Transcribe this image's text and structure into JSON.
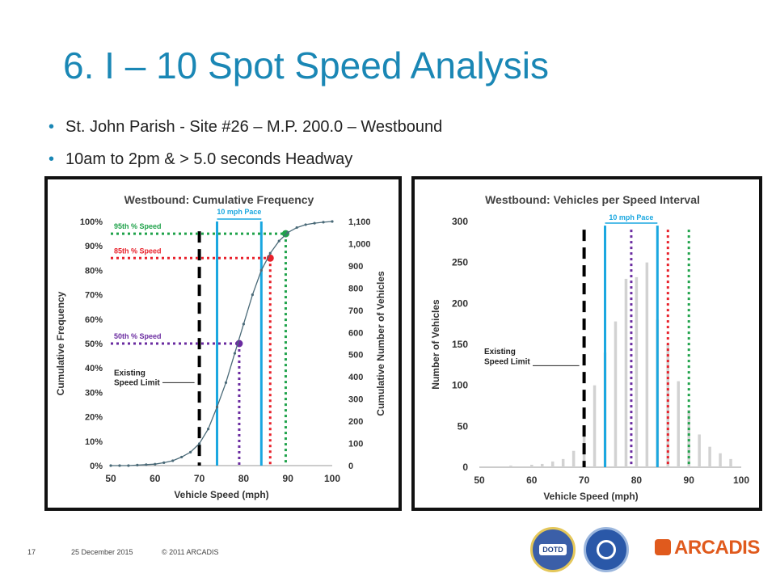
{
  "slide": {
    "title": "6. I – 10 Spot Speed Analysis",
    "bullets": [
      "St. John Parish - Site #26 – M.P. 200.0 – Westbound",
      "10am to 2pm & > 5.0 seconds Headway"
    ]
  },
  "footer": {
    "page_number": "17",
    "date": "25 December 2015",
    "copyright": "© 2011 ARCADIS",
    "brand": "ARCADIS",
    "dotd_badge": "DOTD"
  },
  "colors": {
    "title": "#1a87b5",
    "curve": "#4a6a78",
    "pct85": "#e8202a",
    "pct95": "#1fa24a",
    "pct50": "#6a2ba0",
    "pace": "#1aa7e0",
    "limit": "#000000",
    "bars": "#d2d2d2",
    "brand": "#e05a1d"
  },
  "chart_data": [
    {
      "type": "line",
      "title": "Westbound: Cumulative Frequency",
      "xlabel": "Vehicle Speed (mph)",
      "ylabel": "Cumulative Frequency",
      "y2label": "Cumulative Number of Vehicles",
      "xlim": [
        50,
        100
      ],
      "ylim": [
        0,
        1.0
      ],
      "y2lim": [
        0,
        1100
      ],
      "x_ticks": [
        "50",
        "60",
        "70",
        "80",
        "90",
        "100"
      ],
      "y_ticks": [
        "0%",
        "10%",
        "20%",
        "30%",
        "40%",
        "50%",
        "60%",
        "70%",
        "80%",
        "90%",
        "100%"
      ],
      "y2_ticks": [
        "0",
        "100",
        "200",
        "300",
        "400",
        "500",
        "600",
        "700",
        "800",
        "900",
        "1,000",
        "1,100"
      ],
      "x": [
        50,
        52,
        54,
        56,
        58,
        60,
        62,
        64,
        66,
        68,
        70,
        72,
        74,
        76,
        78,
        80,
        82,
        84,
        86,
        88,
        90,
        92,
        94,
        96,
        98,
        100
      ],
      "y": [
        0.0,
        0.0,
        0.0,
        0.002,
        0.004,
        0.006,
        0.012,
        0.02,
        0.035,
        0.055,
        0.09,
        0.15,
        0.24,
        0.34,
        0.46,
        0.58,
        0.7,
        0.8,
        0.87,
        0.92,
        0.955,
        0.975,
        0.987,
        0.993,
        0.997,
        1.0
      ],
      "annotations": [
        {
          "label": "95th % Speed",
          "speed": 89.5,
          "pct": 0.95
        },
        {
          "label": "85th % Speed",
          "speed": 86.0,
          "pct": 0.85
        },
        {
          "label": "50th % Speed",
          "speed": 79.0,
          "pct": 0.5
        }
      ],
      "pace_label": "10 mph Pace",
      "pace": [
        74,
        84
      ],
      "speed_limit": 70,
      "speed_limit_label": [
        "Existing",
        "Speed Limit"
      ]
    },
    {
      "type": "bar",
      "title": "Westbound: Vehicles per Speed Interval",
      "xlabel": "Vehicle Speed (mph)",
      "ylabel": "Number of Vehicles",
      "xlim": [
        50,
        100
      ],
      "ylim": [
        0,
        300
      ],
      "x_ticks": [
        "50",
        "60",
        "70",
        "80",
        "90",
        "100"
      ],
      "y_ticks": [
        "0",
        "50",
        "100",
        "150",
        "200",
        "250",
        "300"
      ],
      "x": [
        56,
        60,
        62,
        64,
        66,
        68,
        70,
        72,
        74,
        76,
        78,
        80,
        82,
        84,
        86,
        88,
        90,
        92,
        94,
        96,
        98
      ],
      "values": [
        2,
        3,
        4,
        7,
        10,
        20,
        40,
        100,
        140,
        178,
        230,
        232,
        250,
        180,
        150,
        105,
        70,
        40,
        25,
        17,
        10
      ],
      "pace_label": "10 mph Pace",
      "pace": [
        74,
        84
      ],
      "pct50": 79,
      "pct85": 86,
      "pct95": 90,
      "speed_limit": 70,
      "speed_limit_label": [
        "Existing",
        "Speed Limit"
      ]
    }
  ]
}
